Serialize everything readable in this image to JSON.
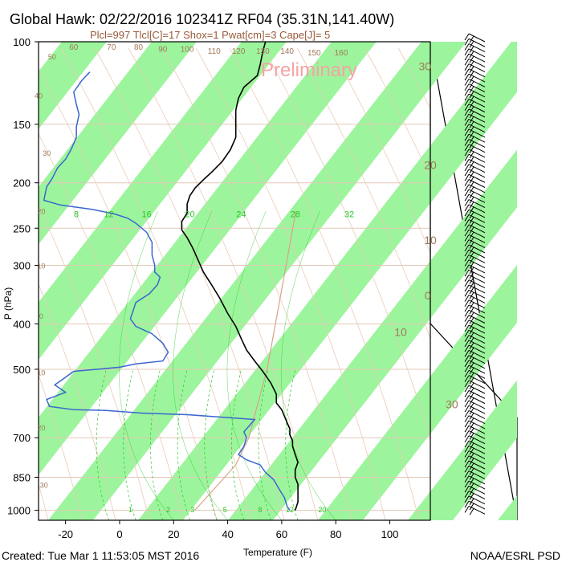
{
  "header": {
    "title": "Global Hawk: 02/22/2016 102341Z RF04 (35.31N,141.40W)",
    "subtitle": "Plcl=997 Tlcl[C]=17 Shox=1 Pwat[cm]=3 Cape[J]= 5",
    "watermark": "Preliminary"
  },
  "footer": {
    "created": "Created: Tue Mar  1 11:53:05 MST 2016",
    "credit": "NOAA/ESRL PSD"
  },
  "colors": {
    "temperature": "#000000",
    "dewpoint": "#3a66d0",
    "band": "#9cf59c",
    "isobar": "#e2c8b6",
    "label_brown": "#a0785a",
    "mixing_ratio": "#22c722",
    "parcel": "#d7a389",
    "title_brown": "#9a5a3a",
    "watermark": "#f5a3a3"
  },
  "chart_data": {
    "type": "line",
    "title": "Global Hawk: 02/22/2016 102341Z RF04 (35.31N,141.40W)",
    "xlabel": "Temperature (F)",
    "ylabel": "P (hPa)",
    "xlim": [
      -30,
      115
    ],
    "ylim": [
      1050,
      100
    ],
    "y_scale": "log",
    "x_ticks": [
      -20,
      0,
      20,
      40,
      60,
      80,
      100
    ],
    "y_ticks": [
      100,
      150,
      200,
      250,
      300,
      400,
      500,
      700,
      850,
      1000
    ],
    "temperature_labels": [
      {
        "value": "30",
        "t": 113,
        "p": 115
      },
      {
        "value": "20",
        "t": 115,
        "p": 187
      },
      {
        "value": "10",
        "t": 115,
        "p": 270
      },
      {
        "value": "0",
        "t": 114,
        "p": 355
      },
      {
        "value": "10",
        "t": 104,
        "p": 425
      },
      {
        "value": "30",
        "t": 123,
        "p": 605
      }
    ],
    "left_labels": [
      {
        "value": "50",
        "t": -25,
        "p": 109
      },
      {
        "value": "40",
        "t": -30,
        "p": 132
      },
      {
        "value": "30",
        "t": -27,
        "p": 175
      },
      {
        "value": "20",
        "t": -29,
        "p": 233
      },
      {
        "value": "10",
        "t": -29,
        "p": 305
      },
      {
        "value": "0",
        "t": -29,
        "p": 390
      },
      {
        "value": "10",
        "t": -29,
        "p": 515
      },
      {
        "value": "20",
        "t": -29,
        "p": 675
      },
      {
        "value": "30",
        "t": -28,
        "p": 895
      }
    ],
    "top_labels": [
      {
        "value": "60",
        "t": -17,
        "p": 104
      },
      {
        "value": "70",
        "t": -3,
        "p": 104
      },
      {
        "value": "80",
        "t": 7,
        "p": 104
      },
      {
        "value": "90",
        "t": 16,
        "p": 105
      },
      {
        "value": "100",
        "t": 25,
        "p": 105
      },
      {
        "value": "110",
        "t": 35,
        "p": 106
      },
      {
        "value": "120",
        "t": 44,
        "p": 106
      },
      {
        "value": "130",
        "t": 53,
        "p": 106
      },
      {
        "value": "140",
        "t": 62,
        "p": 106
      },
      {
        "value": "150",
        "t": 72,
        "p": 107
      },
      {
        "value": "160",
        "t": 82,
        "p": 107
      }
    ],
    "mixing_ratio_labels": [
      {
        "value": "8",
        "t": -16,
        "p": 237
      },
      {
        "value": "12",
        "t": -4,
        "p": 237
      },
      {
        "value": "16",
        "t": 10,
        "p": 237
      },
      {
        "value": "20",
        "t": 26,
        "p": 237
      },
      {
        "value": "24",
        "t": 45,
        "p": 237
      },
      {
        "value": "28",
        "t": 65,
        "p": 237
      },
      {
        "value": "32",
        "t": 85,
        "p": 237
      }
    ],
    "surface_mixing_labels": [
      {
        "value": "1",
        "t": 4,
        "p": 1010
      },
      {
        "value": "2",
        "t": 18,
        "p": 1010
      },
      {
        "value": "3",
        "t": 27,
        "p": 1010
      },
      {
        "value": "5",
        "t": 39,
        "p": 1010
      },
      {
        "value": "8",
        "t": 52,
        "p": 1010
      },
      {
        "value": "12",
        "t": 63,
        "p": 1010
      },
      {
        "value": "20",
        "t": 75,
        "p": 1010
      }
    ],
    "series": [
      {
        "key": "temperature",
        "points": [
          [
            54,
            100
          ],
          [
            53,
            105
          ],
          [
            52,
            112
          ],
          [
            51,
            118
          ],
          [
            46,
            125
          ],
          [
            44,
            132
          ],
          [
            43,
            140
          ],
          [
            43,
            150
          ],
          [
            43,
            160
          ],
          [
            41,
            170
          ],
          [
            38,
            180
          ],
          [
            34,
            190
          ],
          [
            31,
            197
          ],
          [
            28,
            205
          ],
          [
            26,
            213
          ],
          [
            25,
            222
          ],
          [
            25,
            232
          ],
          [
            23,
            242
          ],
          [
            23,
            252
          ],
          [
            25,
            262
          ],
          [
            27,
            275
          ],
          [
            29,
            292
          ],
          [
            31,
            310
          ],
          [
            34,
            330
          ],
          [
            37,
            352
          ],
          [
            40,
            380
          ],
          [
            43,
            405
          ],
          [
            45,
            430
          ],
          [
            47,
            455
          ],
          [
            50,
            480
          ],
          [
            53,
            505
          ],
          [
            56,
            535
          ],
          [
            58,
            565
          ],
          [
            58,
            590
          ],
          [
            60,
            610
          ],
          [
            61,
            630
          ],
          [
            62,
            650
          ],
          [
            63,
            670
          ],
          [
            63,
            690
          ],
          [
            64,
            710
          ],
          [
            64,
            730
          ],
          [
            65,
            760
          ],
          [
            66,
            790
          ],
          [
            65,
            820
          ],
          [
            65,
            850
          ],
          [
            66,
            880
          ],
          [
            66,
            920
          ],
          [
            66,
            960
          ],
          [
            65,
            1000
          ]
        ]
      },
      {
        "key": "dewpoint",
        "points": [
          [
            -11,
            116
          ],
          [
            -14,
            121
          ],
          [
            -17,
            128
          ],
          [
            -16,
            136
          ],
          [
            -15,
            143
          ],
          [
            -16,
            152
          ],
          [
            -16,
            160
          ],
          [
            -18,
            170
          ],
          [
            -20,
            178
          ],
          [
            -23,
            186
          ],
          [
            -25,
            196
          ],
          [
            -27,
            204
          ],
          [
            -28,
            218
          ],
          [
            -22,
            223
          ],
          [
            -10,
            228
          ],
          [
            -2,
            233
          ],
          [
            3,
            238
          ],
          [
            6,
            244
          ],
          [
            10,
            255
          ],
          [
            12,
            268
          ],
          [
            12,
            285
          ],
          [
            13,
            300
          ],
          [
            13,
            310
          ],
          [
            15,
            318
          ],
          [
            14,
            330
          ],
          [
            11,
            345
          ],
          [
            6,
            360
          ],
          [
            5,
            375
          ],
          [
            4,
            390
          ],
          [
            6,
            405
          ],
          [
            12,
            420
          ],
          [
            16,
            440
          ],
          [
            18,
            460
          ],
          [
            16,
            480
          ],
          [
            6,
            487
          ],
          [
            0,
            495
          ],
          [
            -8,
            500
          ],
          [
            -17,
            505
          ],
          [
            -20,
            520
          ],
          [
            -24,
            540
          ],
          [
            -20,
            560
          ],
          [
            -27,
            580
          ],
          [
            -26,
            600
          ],
          [
            -17,
            610
          ],
          [
            -5,
            612
          ],
          [
            8,
            620
          ],
          [
            25,
            625
          ],
          [
            50,
            640
          ],
          [
            48,
            660
          ],
          [
            46,
            680
          ],
          [
            47,
            700
          ],
          [
            46,
            730
          ],
          [
            44,
            760
          ],
          [
            47,
            780
          ],
          [
            52,
            800
          ],
          [
            54,
            830
          ],
          [
            57,
            860
          ],
          [
            59,
            900
          ],
          [
            61,
            940
          ],
          [
            62,
            980
          ],
          [
            63,
            1000
          ]
        ]
      }
    ]
  }
}
